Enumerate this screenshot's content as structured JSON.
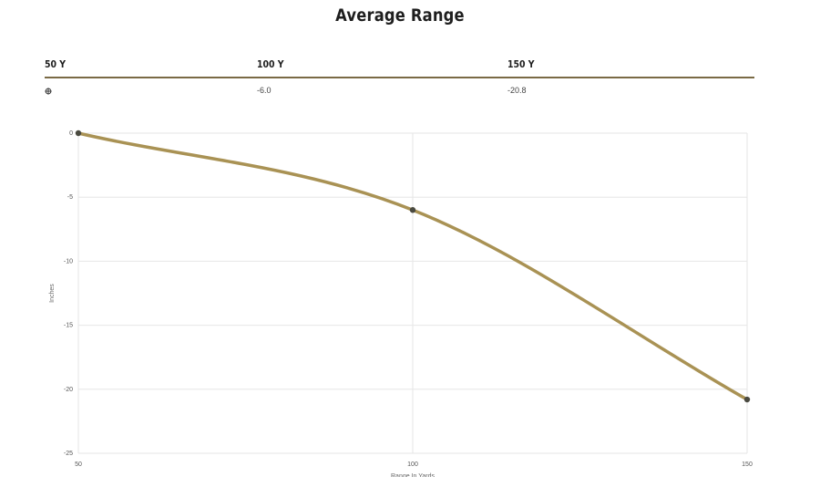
{
  "header": {
    "title": "Average Range"
  },
  "table": {
    "columns": [
      "50 Y",
      "100 Y",
      "150 Y"
    ],
    "row": {
      "icon": "crosshair-icon",
      "values": [
        "",
        "-6.0",
        "-20.8"
      ]
    }
  },
  "colors": {
    "line": "#a99254",
    "point": "#4a4a40",
    "rule": "#7a6a45",
    "grid": "#e6e6e6"
  },
  "chart_data": {
    "type": "line",
    "title": "",
    "xlabel": "Range In Yards",
    "ylabel": "Inches",
    "x": [
      50,
      100,
      150
    ],
    "series": [
      {
        "values": [
          0,
          -6.0,
          -20.8
        ]
      }
    ],
    "xlim": [
      50,
      150
    ],
    "ylim": [
      -25,
      0
    ],
    "xticks": [
      "50",
      "100",
      "150"
    ],
    "yticks": [
      "0",
      "-5",
      "-10",
      "-15",
      "-20",
      "-25"
    ],
    "grid": true,
    "legend": "none"
  }
}
